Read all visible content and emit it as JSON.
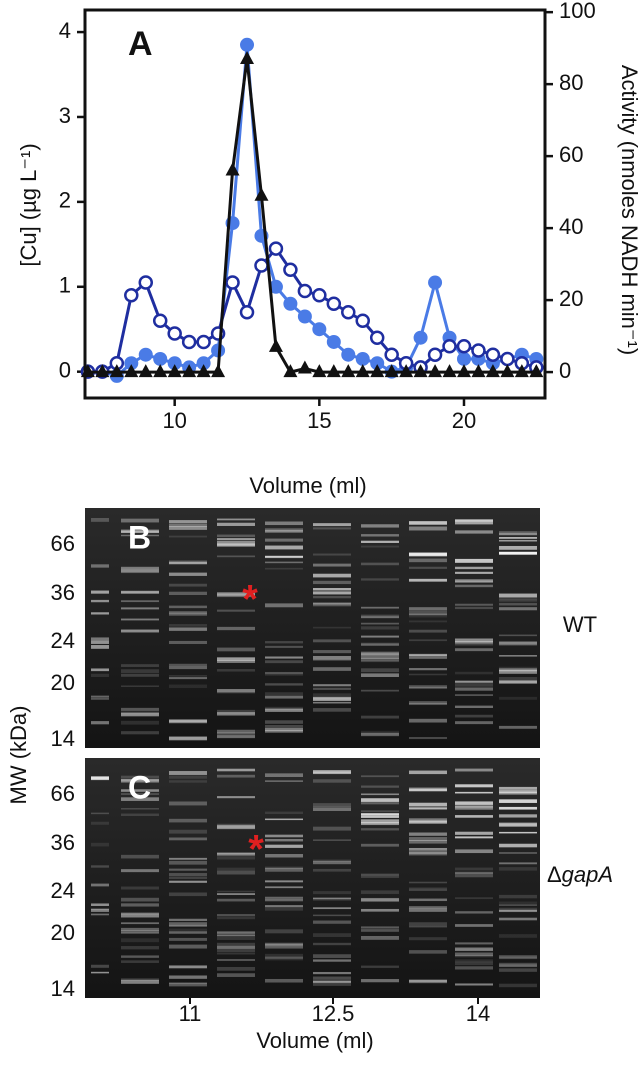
{
  "chart_data": {
    "type": "line",
    "panel_label": "A",
    "x_label": "Volume (ml)",
    "y_label": "[Cu] (µg L⁻¹)",
    "y2_label": "Activity (nmoles NADH min⁻¹)",
    "x": [
      7,
      7.5,
      8,
      8.5,
      9,
      9.5,
      10,
      10.5,
      11,
      11.5,
      12,
      12.5,
      13,
      13.5,
      14,
      14.5,
      15,
      15.5,
      16,
      16.5,
      17,
      17.5,
      18,
      18.5,
      19,
      19.5,
      20,
      20.5,
      21,
      21.5,
      22,
      22.5
    ],
    "series": [
      {
        "color": "#4a7be6",
        "marker": "filled-circle",
        "values": [
          0,
          0,
          -0.05,
          0.1,
          0.2,
          0.15,
          0.1,
          0.05,
          0.1,
          0.25,
          1.75,
          3.85,
          1.6,
          1.0,
          0.8,
          0.65,
          0.5,
          0.35,
          0.2,
          0.15,
          0.1,
          0.0,
          0.05,
          0.4,
          1.05,
          0.4,
          0.15,
          0.15,
          0.1,
          0.15,
          0.2,
          0.15
        ]
      },
      {
        "color": "#1f2ea0",
        "marker": "open-circle",
        "values": [
          0,
          0,
          0.1,
          0.9,
          1.05,
          0.6,
          0.45,
          0.35,
          0.35,
          0.45,
          1.05,
          0.7,
          1.25,
          1.45,
          1.2,
          0.95,
          0.9,
          0.8,
          0.7,
          0.6,
          0.4,
          0.2,
          0.1,
          0.05,
          0.2,
          0.3,
          0.3,
          0.25,
          0.2,
          0.15,
          0.1,
          0.05
        ]
      },
      {
        "color": "#111111",
        "marker": "triangle",
        "axis": "y2",
        "values": [
          0,
          0,
          0,
          0,
          0,
          0,
          0,
          0,
          0,
          0,
          56,
          87,
          49,
          7,
          0,
          1,
          0,
          0,
          0,
          0,
          0,
          0,
          0,
          0,
          0,
          0,
          0,
          0,
          0,
          0,
          0,
          0
        ]
      }
    ],
    "xlim": [
      6.9,
      22.8
    ],
    "xticks": [
      10,
      15,
      20
    ],
    "ylim": [
      -0.31,
      4.26
    ],
    "yticks": [
      0,
      1,
      2,
      3,
      4
    ],
    "y2lim": [
      -7.2,
      100.6
    ],
    "y2ticks": [
      0,
      20,
      40,
      60,
      80,
      100
    ]
  },
  "gel": {
    "y_label": "MW (kDa)",
    "x_label": "Volume (ml)",
    "mw_ticks": [
      66,
      36,
      24,
      20,
      14
    ],
    "lane_ticks": [
      11,
      12.5,
      14
    ],
    "panels": [
      {
        "label": "B",
        "marker": "*",
        "strain_prefix": "",
        "strain": "WT"
      },
      {
        "label": "C",
        "marker": "*",
        "strain_prefix": "Δ",
        "strain": "gapA"
      }
    ]
  }
}
